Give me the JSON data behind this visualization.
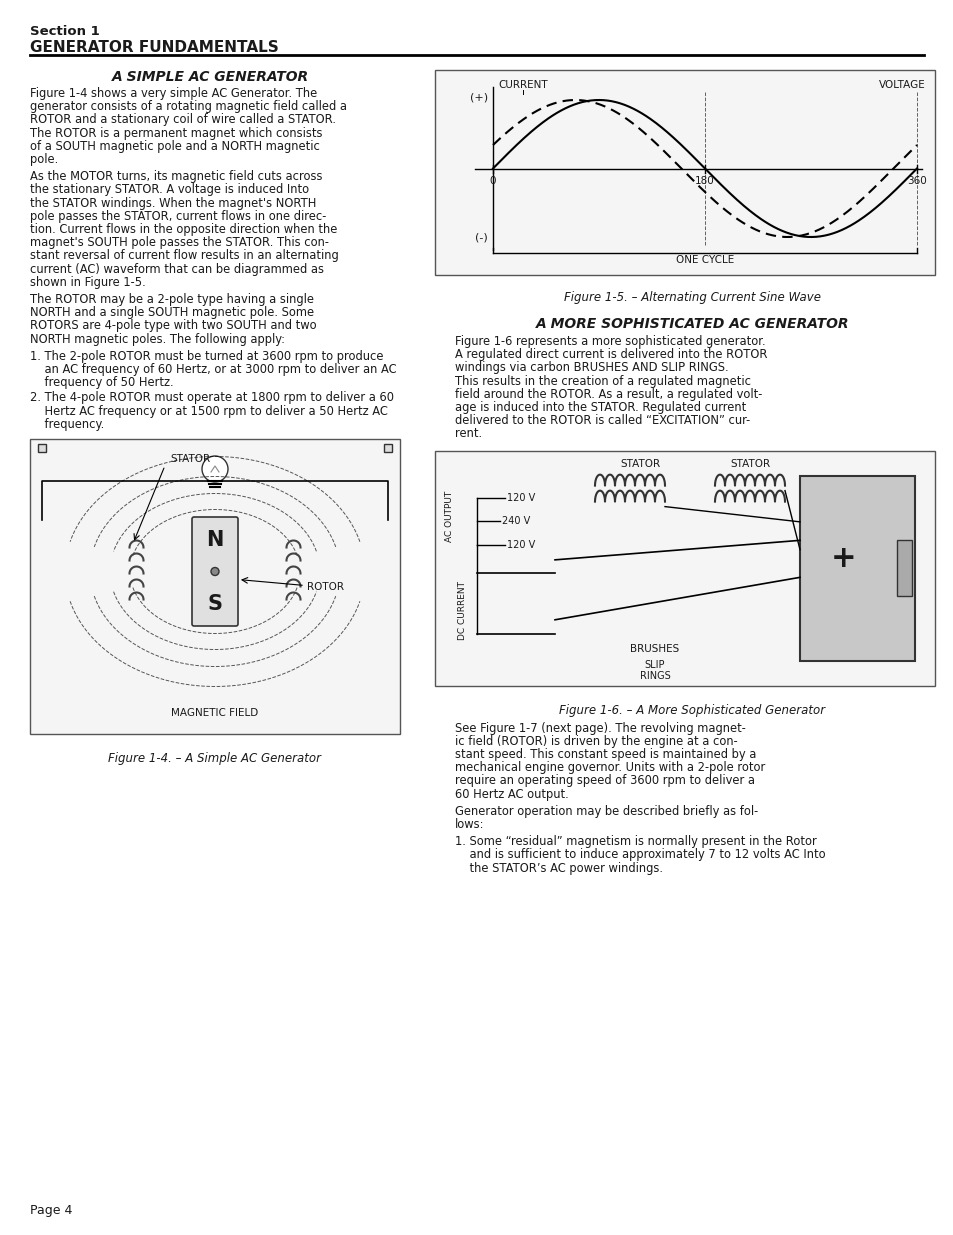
{
  "page_bg": "#ffffff",
  "header_section": "Section 1",
  "header_title": "GENERATOR FUNDAMENTALS",
  "col1_title": "A SIMPLE AC GENERATOR",
  "col1_para1": "Figure 1-4 shows a very simple AC Generator. The\ngenerator consists of a rotating magnetic field called a\nROTOR and a stationary coil of wire called a STATOR.\nThe ROTOR is a permanent magnet which consists\nof a SOUTH magnetic pole and a NORTH magnetic\npole.",
  "col1_para2": "As the MOTOR turns, its magnetic field cuts across\nthe stationary STATOR. A voltage is induced Into\nthe STATOR windings. When the magnet's NORTH\npole passes the STATOR, current flows in one direc-\ntion. Current flows in the opposite direction when the\nmagnet's SOUTH pole passes the STATOR. This con-\nstant reversal of current flow results in an alternating\ncurrent (AC) waveform that can be diagrammed as\nshown in Figure 1-5.",
  "col1_para3": "The ROTOR may be a 2-pole type having a single\nNORTH and a single SOUTH magnetic pole. Some\nROTORS are 4-pole type with two SOUTH and two\nNORTH magnetic poles. The following apply:",
  "col1_list1": "1. The 2-pole ROTOR must be turned at 3600 rpm to produce\n    an AC frequency of 60 Hertz, or at 3000 rpm to deliver an AC\n    frequency of 50 Hertz.",
  "col1_list2": "2. The 4-pole ROTOR must operate at 1800 rpm to deliver a 60\n    Hertz AC frequency or at 1500 rpm to deliver a 50 Hertz AC\n    frequency.",
  "col1_fig_caption": "Figure 1-4. – A Simple AC Generator",
  "col2_title": "A MORE SOPHISTICATED AC GENERATOR",
  "col2_para1": "Figure 1-6 represents a more sophisticated generator.\nA regulated direct current is delivered into the ROTOR\nwindings via carbon BRUSHES AND SLIP RINGS.\nThis results in the creation of a regulated magnetic\nfield around the ROTOR. As a result, a regulated volt-\nage is induced into the STATOR. Regulated current\ndelivered to the ROTOR is called “EXCITATION” cur-\nrent.",
  "col2_fig_caption": "Figure 1-6. – A More Sophisticated Generator",
  "col2_para2": "See Figure 1-7 (next page). The revolving magnet-\nic field (ROTOR) is driven by the engine at a con-\nstant speed. This constant speed is maintained by a\nmechanical engine governor. Units with a 2-pole rotor\nrequire an operating speed of 3600 rpm to deliver a\n60 Hertz AC output.",
  "col2_para3": "Generator operation may be described briefly as fol-\nlows:",
  "col2_list1": "1. Some “residual” magnetism is normally present in the Rotor\n    and is sufficient to induce approximately 7 to 12 volts AC Into\n    the STATOR’s AC power windings.",
  "page_num": "Page 4",
  "text_color": "#1a1a1a"
}
